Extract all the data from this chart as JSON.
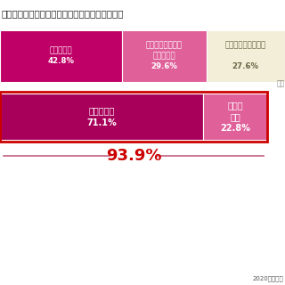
{
  "title": "半分の印象・下半分の印象、どちらが大切だと思",
  "title_fontsize": 7.5,
  "bar1": {
    "segments": [
      {
        "label": "顏の上半分\n42.8%",
        "value": 42.8,
        "color": "#bf0066"
      },
      {
        "label": "どちらかというと\n顏の上半分\n29.6%",
        "value": 29.6,
        "color": "#e0609a"
      },
      {
        "label": "どちらともいえない\n\n27.6%",
        "value": 27.6,
        "color": "#f2eed8"
      }
    ]
  },
  "bar2": {
    "segments": [
      {
        "label": "顏の上半分\n71.1%",
        "value": 71.1,
        "color": "#a8005a"
      },
      {
        "label": "どちら\n顏の\n22.8%",
        "value": 22.8,
        "color": "#e0609a"
      }
    ]
  },
  "bar1_total": 100,
  "bar2_visible": 93.9,
  "annotation_text": "93.9%",
  "annotation_color": "#cc0000",
  "line_color": "#c06080",
  "source_text": "2020年大正製",
  "bg_color": "#ffffff",
  "text_color_light": "#ffffff",
  "text_color_dark": "#666644"
}
